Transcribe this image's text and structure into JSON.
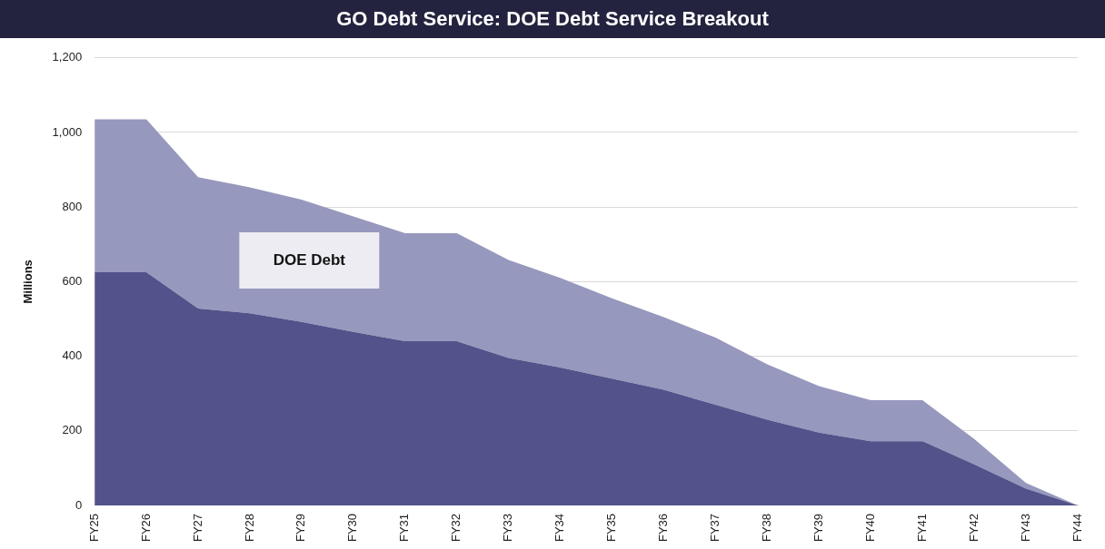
{
  "chart_data": {
    "type": "area",
    "title": "GO Debt Service: DOE Debt Service Breakout",
    "ylabel": "Millions",
    "stacked": true,
    "grid": "y",
    "legend": false,
    "categories": [
      "FY25",
      "FY26",
      "FY27",
      "FY28",
      "FY29",
      "FY30",
      "FY31",
      "FY32",
      "FY33",
      "FY34",
      "FY35",
      "FY36",
      "FY37",
      "FY38",
      "FY39",
      "FY40",
      "FY41",
      "FY42",
      "FY43",
      "FY44"
    ],
    "series": [
      {
        "color": "#52538a",
        "values": [
          625,
          625,
          528,
          515,
          492,
          465,
          440,
          440,
          395,
          370,
          340,
          310,
          270,
          230,
          195,
          172,
          172,
          110,
          45,
          0
        ]
      },
      {
        "name": "DOE Debt",
        "color": "#9798bd",
        "values": [
          410,
          410,
          352,
          338,
          328,
          310,
          290,
          290,
          263,
          240,
          215,
          195,
          180,
          148,
          125,
          110,
          110,
          68,
          15,
          0
        ]
      }
    ],
    "ylim": [
      0,
      1200
    ],
    "yticks": [
      0,
      200,
      400,
      600,
      800,
      {
        "value": 1000,
        "label": "1,000"
      },
      {
        "value": 1200,
        "label": "1,200"
      }
    ]
  }
}
